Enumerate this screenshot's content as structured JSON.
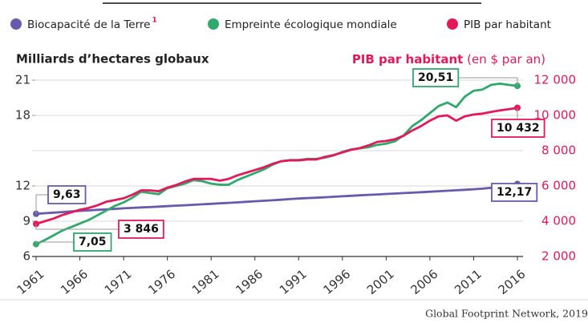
{
  "chart_data": {
    "type": "line",
    "ylabel": "Milliards d’hectares globaux",
    "y2label": "PIB par habitant",
    "y2label_unit": "(en $ par an)",
    "legend_note": "1",
    "source": "Global Footprint Network, 2019",
    "x": [
      1961,
      1962,
      1963,
      1964,
      1965,
      1966,
      1967,
      1968,
      1969,
      1970,
      1971,
      1972,
      1973,
      1974,
      1975,
      1976,
      1977,
      1978,
      1979,
      1980,
      1981,
      1982,
      1983,
      1984,
      1985,
      1986,
      1987,
      1988,
      1989,
      1990,
      1991,
      1992,
      1993,
      1994,
      1995,
      1996,
      1997,
      1998,
      1999,
      2000,
      2001,
      2002,
      2003,
      2004,
      2005,
      2006,
      2007,
      2008,
      2009,
      2010,
      2011,
      2012,
      2013,
      2014,
      2015,
      2016
    ],
    "xlim": [
      1961,
      2016
    ],
    "xticks": [
      1961,
      1966,
      1971,
      1976,
      1981,
      1986,
      1991,
      1996,
      2001,
      2006,
      2011,
      2016
    ],
    "ylim": [
      6,
      21
    ],
    "yticks": [
      6,
      9,
      12,
      18,
      21
    ],
    "y2lim": [
      2000,
      12000
    ],
    "y2ticks": [
      {
        "value": 2000,
        "label": "2 000"
      },
      {
        "value": 4000,
        "label": "4 000"
      },
      {
        "value": 6000,
        "label": "6 000"
      },
      {
        "value": 8000,
        "label": "8 000"
      },
      {
        "value": 10000,
        "label": "10 000"
      },
      {
        "value": 12000,
        "label": "12 000"
      }
    ],
    "grid": true,
    "series": [
      {
        "name": "Biocapacité de la Terre",
        "color": "#6a5aad",
        "values": [
          9.63,
          9.68,
          9.73,
          9.78,
          9.83,
          9.88,
          9.92,
          9.97,
          10.0,
          10.05,
          10.1,
          10.13,
          10.17,
          10.2,
          10.24,
          10.28,
          10.32,
          10.36,
          10.4,
          10.44,
          10.48,
          10.52,
          10.56,
          10.6,
          10.65,
          10.7,
          10.74,
          10.78,
          10.83,
          10.88,
          10.93,
          10.97,
          11.0,
          11.04,
          11.08,
          11.12,
          11.16,
          11.2,
          11.24,
          11.28,
          11.32,
          11.35,
          11.39,
          11.43,
          11.47,
          11.51,
          11.55,
          11.59,
          11.63,
          11.67,
          11.72,
          11.77,
          11.84,
          11.95,
          12.08,
          12.17
        ],
        "value_labels": [
          "9,63",
          null,
          null,
          null,
          null,
          null,
          null,
          null,
          null,
          null,
          null,
          null,
          null,
          null,
          null,
          null,
          null,
          null,
          null,
          null,
          null,
          null,
          null,
          null,
          null,
          null,
          null,
          null,
          null,
          null,
          null,
          null,
          null,
          null,
          null,
          null,
          null,
          null,
          null,
          null,
          null,
          null,
          null,
          null,
          null,
          null,
          null,
          null,
          null,
          null,
          null,
          null,
          null,
          null,
          null,
          "12,17"
        ]
      },
      {
        "name": "Empreinte écologique mondiale",
        "color": "#2eaa6b",
        "values": [
          7.05,
          7.4,
          7.8,
          8.2,
          8.5,
          8.8,
          9.1,
          9.5,
          9.9,
          10.3,
          10.6,
          11.0,
          11.5,
          11.4,
          11.3,
          11.8,
          12.0,
          12.2,
          12.5,
          12.4,
          12.2,
          12.1,
          12.1,
          12.5,
          12.8,
          13.1,
          13.4,
          13.8,
          14.1,
          14.2,
          14.2,
          14.3,
          14.3,
          14.4,
          14.6,
          14.9,
          15.1,
          15.2,
          15.3,
          15.5,
          15.6,
          15.8,
          16.3,
          17.1,
          17.6,
          18.2,
          18.8,
          19.1,
          18.7,
          19.6,
          20.1,
          20.2,
          20.6,
          20.7,
          20.6,
          20.51
        ],
        "value_labels": [
          "7,05",
          null,
          null,
          null,
          null,
          null,
          null,
          null,
          null,
          null,
          null,
          null,
          null,
          null,
          null,
          null,
          null,
          null,
          null,
          null,
          null,
          null,
          null,
          null,
          null,
          null,
          null,
          null,
          null,
          null,
          null,
          null,
          null,
          null,
          null,
          null,
          null,
          null,
          null,
          null,
          null,
          null,
          null,
          null,
          null,
          null,
          null,
          null,
          null,
          null,
          null,
          null,
          null,
          null,
          null,
          "20,51"
        ]
      },
      {
        "name": "PIB par habitant",
        "color": "#e5195a",
        "axis": "y2",
        "values": [
          3846,
          4000,
          4150,
          4350,
          4500,
          4650,
          4750,
          4900,
          5100,
          5200,
          5300,
          5500,
          5750,
          5750,
          5700,
          5900,
          6050,
          6250,
          6400,
          6400,
          6400,
          6300,
          6400,
          6600,
          6750,
          6900,
          7050,
          7250,
          7400,
          7450,
          7450,
          7500,
          7500,
          7650,
          7750,
          7900,
          8050,
          8150,
          8300,
          8500,
          8550,
          8650,
          8850,
          9150,
          9400,
          9700,
          9950,
          10000,
          9700,
          9950,
          10050,
          10100,
          10200,
          10280,
          10350,
          10432
        ],
        "value_labels": [
          "3 846",
          null,
          null,
          null,
          null,
          null,
          null,
          null,
          null,
          null,
          null,
          null,
          null,
          null,
          null,
          null,
          null,
          null,
          null,
          null,
          null,
          null,
          null,
          null,
          null,
          null,
          null,
          null,
          null,
          null,
          null,
          null,
          null,
          null,
          null,
          null,
          null,
          null,
          null,
          null,
          null,
          null,
          null,
          null,
          null,
          null,
          null,
          null,
          null,
          null,
          null,
          null,
          null,
          null,
          null,
          "10 432"
        ]
      }
    ]
  }
}
